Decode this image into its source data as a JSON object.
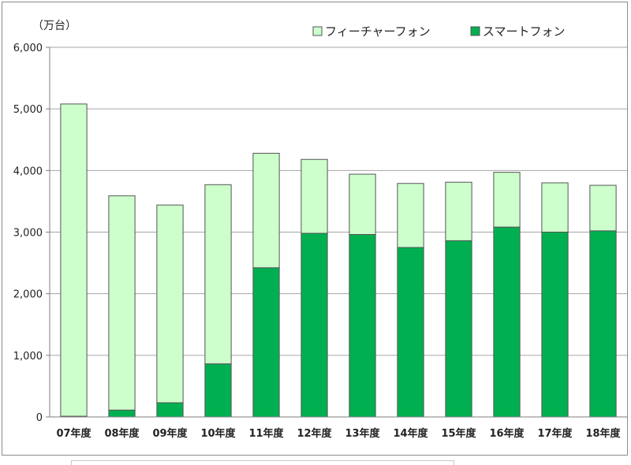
{
  "colors": {
    "feature_phone": "#ccffcc",
    "smartphone": "#00b050",
    "bar_stroke": "#555555",
    "grid": "#a6a6a6",
    "axis": "#7f7f7f"
  },
  "chart_data": {
    "type": "bar",
    "stacked": true,
    "unit_label": "（万台）",
    "categories": [
      "07年度",
      "08年度",
      "09年度",
      "10年度",
      "11年度",
      "12年度",
      "13年度",
      "14年度",
      "15年度",
      "16年度",
      "17年度",
      "18年度"
    ],
    "series": [
      {
        "name": "スマートフォン",
        "values": [
          10,
          110,
          230,
          860,
          2420,
          2980,
          2960,
          2750,
          2860,
          3080,
          3000,
          3020
        ]
      },
      {
        "name": "フィーチャーフォン",
        "values": [
          5070,
          3480,
          3210,
          2910,
          1860,
          1200,
          980,
          1040,
          950,
          890,
          800,
          740
        ]
      }
    ],
    "legend": {
      "placement": "top-right",
      "entries": [
        "フィーチャーフォン",
        "スマートフォン"
      ]
    },
    "ylim": [
      0,
      6000
    ],
    "yticks": [
      0,
      1000,
      2000,
      3000,
      4000,
      5000,
      6000
    ],
    "ytick_labels": [
      "0",
      "1,000",
      "2,000",
      "3,000",
      "4,000",
      "5,000",
      "6,000"
    ],
    "grid": true
  }
}
